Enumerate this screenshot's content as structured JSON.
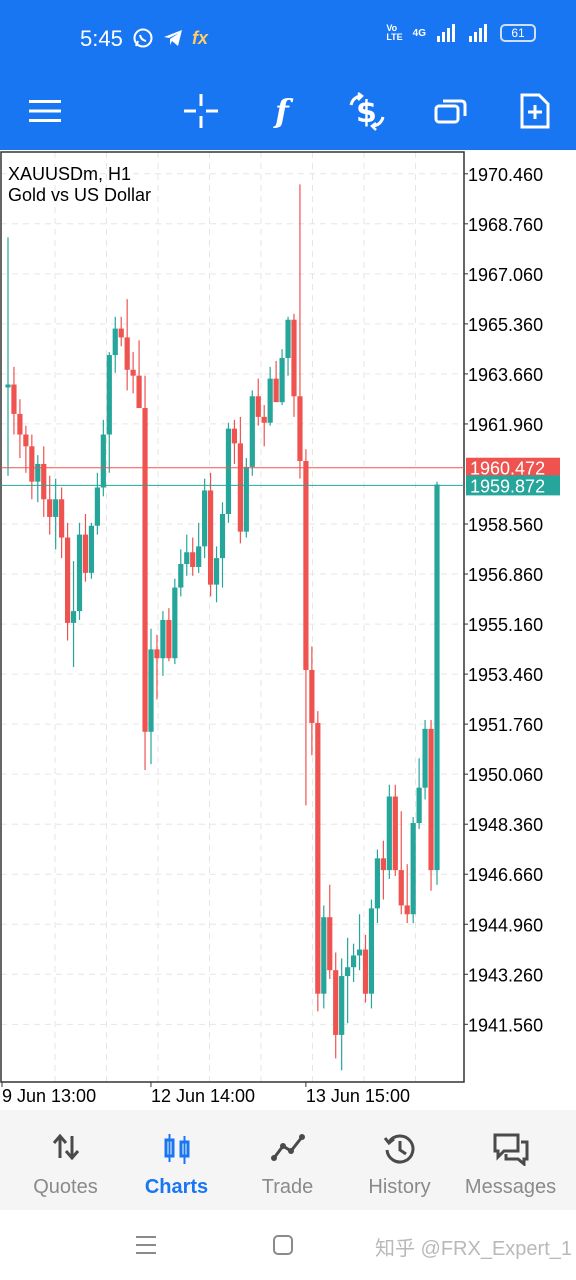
{
  "status": {
    "time": "5:45",
    "battery": "61",
    "network": "4G"
  },
  "toolbar": {
    "items": [
      "menu-icon",
      "crosshair-icon",
      "indicator-icon",
      "trade-dollar-icon",
      "windows-icon",
      "new-order-icon"
    ]
  },
  "chart": {
    "symbol": "XAUUSDm, H1",
    "description": "Gold vs US Dollar"
  },
  "chart_data": {
    "type": "candlestick",
    "ylim": [
      1939.6,
      1971.2
    ],
    "price_labels": [
      "1970.460",
      "1968.760",
      "1967.060",
      "1965.360",
      "1963.660",
      "1961.960",
      "1958.560",
      "1956.860",
      "1955.160",
      "1953.460",
      "1951.760",
      "1950.060",
      "1948.360",
      "1946.660",
      "1944.960",
      "1943.260",
      "1941.560"
    ],
    "price_values": [
      1970.46,
      1968.76,
      1967.06,
      1965.36,
      1963.66,
      1961.96,
      1958.56,
      1956.86,
      1955.16,
      1953.46,
      1951.76,
      1950.06,
      1948.36,
      1946.66,
      1944.96,
      1943.26,
      1941.56
    ],
    "bid_label": "1960.472",
    "bid_value": 1960.472,
    "ask_label": "1959.872",
    "ask_value": 1959.872,
    "time_labels": [
      "9 Jun 13:00",
      "12 Jun 14:00",
      "13 Jun 15:00"
    ],
    "time_label_index": [
      0,
      25,
      51
    ],
    "colors": {
      "up": "#26a69a",
      "down": "#ef5350",
      "bid_line": "#ef5350",
      "ask_line": "#26a69a"
    },
    "candles": [
      [
        1963.2,
        1968.3,
        1960.2,
        1963.3
      ],
      [
        1963.3,
        1963.9,
        1961.6,
        1962.3
      ],
      [
        1962.3,
        1962.8,
        1960.8,
        1961.6
      ],
      [
        1961.6,
        1961.9,
        1960.3,
        1961.2
      ],
      [
        1961.2,
        1961.6,
        1959.4,
        1960.0
      ],
      [
        1960.0,
        1960.9,
        1959.3,
        1960.6
      ],
      [
        1960.6,
        1961.2,
        1958.8,
        1959.4
      ],
      [
        1959.4,
        1960.2,
        1958.2,
        1958.8
      ],
      [
        1958.8,
        1960.1,
        1957.7,
        1959.4
      ],
      [
        1959.4,
        1959.8,
        1957.4,
        1958.1
      ],
      [
        1958.1,
        1958.6,
        1954.6,
        1955.2
      ],
      [
        1955.2,
        1957.3,
        1953.7,
        1955.6
      ],
      [
        1955.6,
        1958.6,
        1955.3,
        1958.2
      ],
      [
        1958.2,
        1958.9,
        1956.6,
        1956.9
      ],
      [
        1956.9,
        1958.6,
        1956.7,
        1958.5
      ],
      [
        1958.5,
        1960.3,
        1958.2,
        1959.8
      ],
      [
        1959.8,
        1962.1,
        1959.5,
        1961.6
      ],
      [
        1961.6,
        1964.4,
        1960.3,
        1964.3
      ],
      [
        1964.3,
        1965.6,
        1963.7,
        1965.2
      ],
      [
        1965.2,
        1965.6,
        1964.6,
        1964.9
      ],
      [
        1964.9,
        1966.2,
        1963.1,
        1963.8
      ],
      [
        1963.8,
        1964.4,
        1963.0,
        1963.6
      ],
      [
        1963.6,
        1964.8,
        1962.6,
        1962.5
      ],
      [
        1962.5,
        1963.6,
        1950.2,
        1951.5
      ],
      [
        1951.5,
        1955.0,
        1950.4,
        1954.3
      ],
      [
        1954.3,
        1954.8,
        1952.6,
        1954.0
      ],
      [
        1954.0,
        1955.6,
        1953.4,
        1955.3
      ],
      [
        1955.3,
        1955.7,
        1953.9,
        1954.0
      ],
      [
        1954.0,
        1956.7,
        1953.8,
        1956.4
      ],
      [
        1956.4,
        1957.7,
        1956.1,
        1957.2
      ],
      [
        1957.2,
        1958.2,
        1956.8,
        1957.6
      ],
      [
        1957.6,
        1958.1,
        1956.8,
        1957.1
      ],
      [
        1957.1,
        1958.6,
        1956.9,
        1957.8
      ],
      [
        1957.8,
        1960.1,
        1957.4,
        1959.7
      ],
      [
        1959.7,
        1960.3,
        1956.1,
        1956.5
      ],
      [
        1956.5,
        1957.8,
        1955.9,
        1957.4
      ],
      [
        1957.4,
        1959.3,
        1956.4,
        1958.9
      ],
      [
        1958.9,
        1962.0,
        1958.6,
        1961.8
      ],
      [
        1961.8,
        1962.1,
        1960.6,
        1961.3
      ],
      [
        1961.3,
        1962.2,
        1957.9,
        1958.3
      ],
      [
        1958.3,
        1960.8,
        1958.1,
        1960.5
      ],
      [
        1960.5,
        1963.1,
        1960.2,
        1962.9
      ],
      [
        1962.9,
        1963.5,
        1961.9,
        1962.2
      ],
      [
        1962.2,
        1962.6,
        1961.2,
        1962.0
      ],
      [
        1962.0,
        1963.9,
        1961.9,
        1963.5
      ],
      [
        1963.5,
        1964.1,
        1962.8,
        1962.7
      ],
      [
        1962.7,
        1964.5,
        1962.6,
        1964.2
      ],
      [
        1964.2,
        1965.6,
        1963.6,
        1965.5
      ],
      [
        1965.5,
        1965.7,
        1962.2,
        1962.9
      ],
      [
        1962.9,
        1970.1,
        1960.1,
        1960.7
      ],
      [
        1960.7,
        1961.1,
        1949.0,
        1953.6
      ],
      [
        1953.6,
        1954.4,
        1950.7,
        1951.8
      ],
      [
        1951.8,
        1952.2,
        1942.0,
        1942.6
      ],
      [
        1942.6,
        1945.6,
        1942.1,
        1945.2
      ],
      [
        1945.2,
        1946.3,
        1943.1,
        1943.4
      ],
      [
        1943.4,
        1944.0,
        1940.4,
        1941.2
      ],
      [
        1941.2,
        1943.8,
        1940.0,
        1943.2
      ],
      [
        1943.2,
        1944.5,
        1941.6,
        1943.5
      ],
      [
        1943.5,
        1944.3,
        1943.0,
        1943.9
      ],
      [
        1943.9,
        1945.3,
        1943.4,
        1944.1
      ],
      [
        1944.1,
        1944.6,
        1942.3,
        1942.6
      ],
      [
        1942.6,
        1945.8,
        1942.1,
        1945.5
      ],
      [
        1945.5,
        1947.5,
        1945.0,
        1947.2
      ],
      [
        1947.2,
        1947.8,
        1945.8,
        1946.8
      ],
      [
        1946.8,
        1949.7,
        1946.5,
        1949.3
      ],
      [
        1949.3,
        1949.7,
        1946.6,
        1946.8
      ],
      [
        1946.8,
        1948.8,
        1945.3,
        1945.6
      ],
      [
        1945.6,
        1947.0,
        1945.0,
        1945.3
      ],
      [
        1945.3,
        1948.6,
        1945.0,
        1948.4
      ],
      [
        1948.4,
        1950.6,
        1948.2,
        1949.6
      ],
      [
        1949.6,
        1951.9,
        1949.2,
        1951.6
      ],
      [
        1951.6,
        1951.9,
        1946.1,
        1946.8
      ],
      [
        1946.8,
        1960.0,
        1946.3,
        1959.9
      ]
    ]
  },
  "nav": {
    "quotes": "Quotes",
    "charts": "Charts",
    "trade": "Trade",
    "history": "History",
    "messages": "Messages"
  },
  "watermark": "知乎 @FRX_Expert_1"
}
